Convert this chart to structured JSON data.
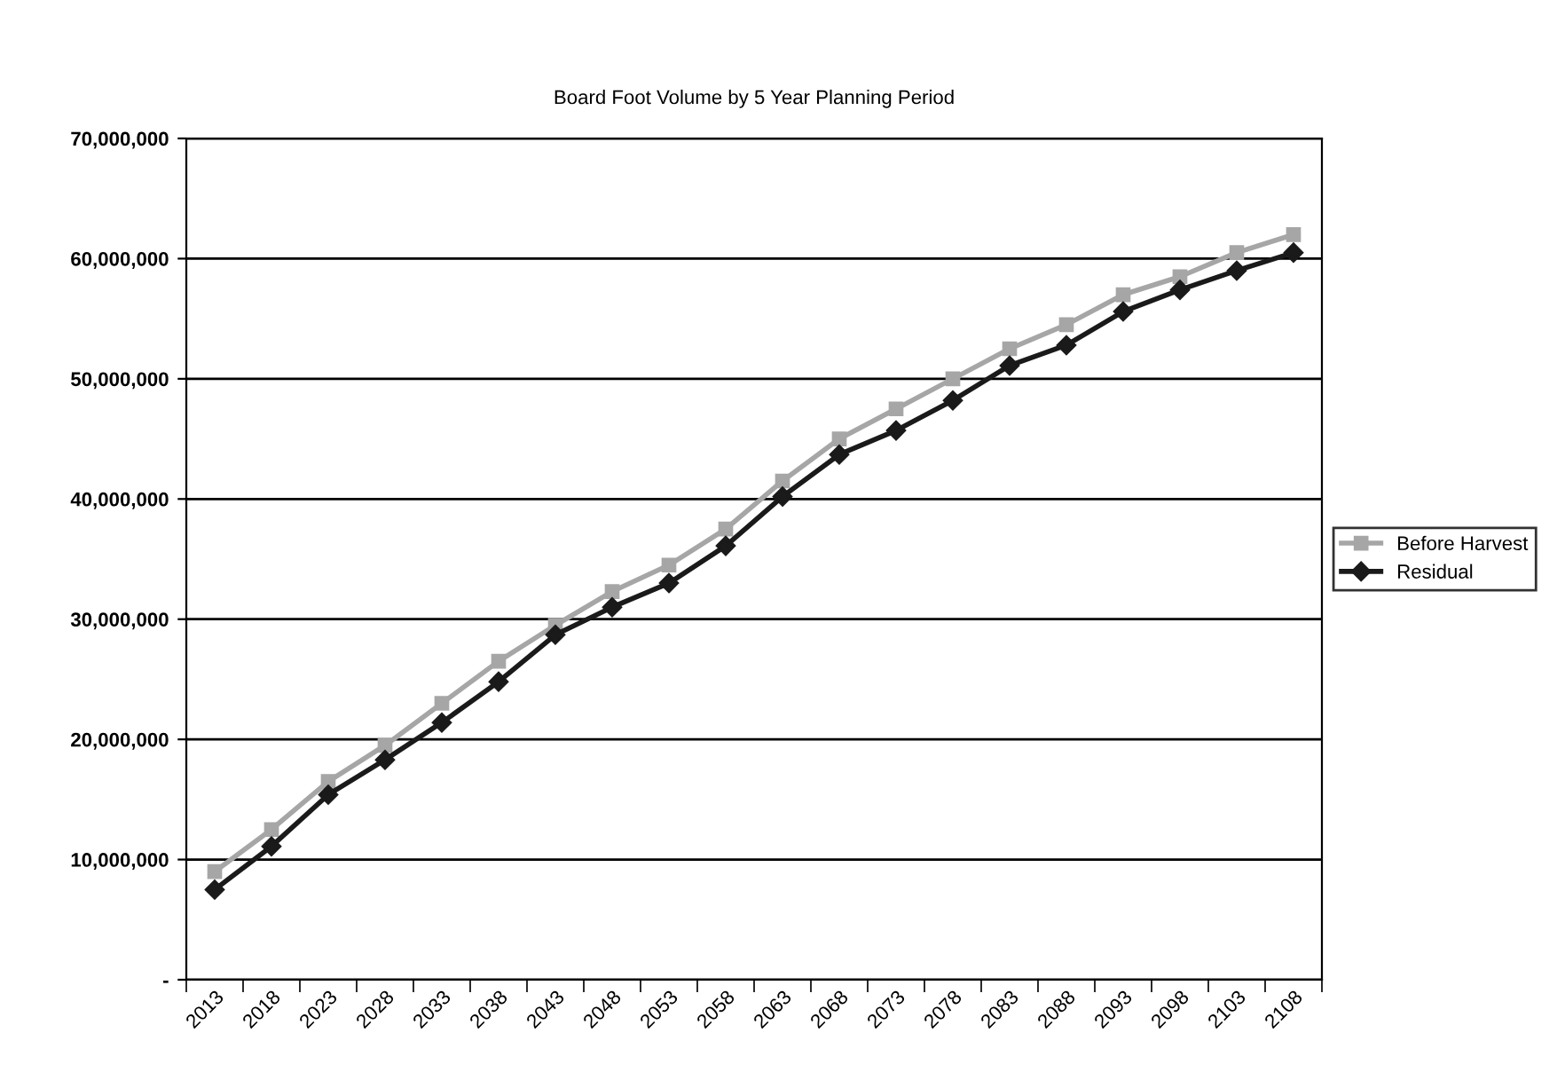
{
  "chart_data": {
    "type": "line",
    "title": "Board Foot Volume by 5 Year Planning Period",
    "categories": [
      "2013",
      "2018",
      "2023",
      "2028",
      "2033",
      "2038",
      "2043",
      "2048",
      "2053",
      "2058",
      "2063",
      "2068",
      "2073",
      "2078",
      "2083",
      "2088",
      "2093",
      "2098",
      "2103",
      "2108"
    ],
    "series": [
      {
        "name": "Before Harvest",
        "color": "#a6a6a6",
        "marker": "square",
        "values": [
          9000000,
          12500000,
          16500000,
          19500000,
          23000000,
          26500000,
          29500000,
          32300000,
          34500000,
          37500000,
          41500000,
          45000000,
          47500000,
          50000000,
          52500000,
          54500000,
          57000000,
          58500000,
          60500000,
          62000000
        ]
      },
      {
        "name": "Residual",
        "color": "#1a1a1a",
        "marker": "diamond",
        "values": [
          7500000,
          11100000,
          15400000,
          18300000,
          21400000,
          24800000,
          28700000,
          31000000,
          33000000,
          36100000,
          40200000,
          43700000,
          45700000,
          48200000,
          51100000,
          52800000,
          55600000,
          57400000,
          59000000,
          60500000
        ]
      }
    ],
    "ylim": [
      0,
      70000000
    ],
    "yticks": [
      {
        "value": 0,
        "label": "-"
      },
      {
        "value": 10000000,
        "label": "10,000,000"
      },
      {
        "value": 20000000,
        "label": "20,000,000"
      },
      {
        "value": 30000000,
        "label": "30,000,000"
      },
      {
        "value": 40000000,
        "label": "40,000,000"
      },
      {
        "value": 50000000,
        "label": "50,000,000"
      },
      {
        "value": 60000000,
        "label": "60,000,000"
      },
      {
        "value": 70000000,
        "label": "70,000,000"
      }
    ],
    "grid": "y",
    "legend": "right",
    "line_style": "solid"
  }
}
